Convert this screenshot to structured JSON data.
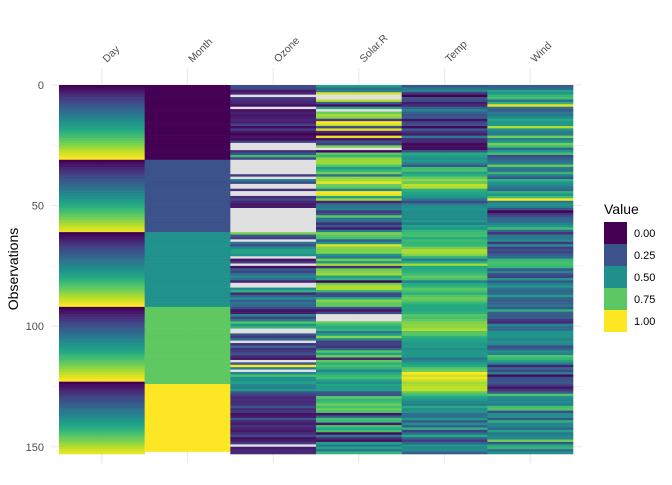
{
  "chart_data": {
    "type": "heatmap",
    "title": "",
    "xlabel": "",
    "ylabel": "Observations",
    "ylim": [
      0,
      153
    ],
    "y_ticks": [
      0,
      50,
      100,
      150
    ],
    "x_position": "top",
    "grid": true,
    "columns": [
      "Day",
      "Month",
      "Ozone",
      "Solar.R",
      "Temp",
      "Wind"
    ],
    "scaling": "each column min-max scaled to 0-1",
    "missing_color": "#e0e0e0",
    "legend": {
      "title": "Value",
      "placement": "right",
      "entries": [
        "0.00",
        "0.25",
        "0.50",
        "0.75",
        "1.00"
      ],
      "colors": [
        "#440154",
        "#3B528B",
        "#21908C",
        "#5DC863",
        "#FDE725"
      ]
    },
    "colormap": "viridis",
    "raw": {
      "Ozone": [
        41,
        36,
        12,
        18,
        null,
        28,
        23,
        19,
        8,
        null,
        7,
        16,
        11,
        14,
        18,
        14,
        34,
        6,
        30,
        11,
        1,
        11,
        4,
        32,
        null,
        null,
        null,
        23,
        45,
        115,
        37,
        null,
        null,
        null,
        null,
        null,
        null,
        29,
        null,
        71,
        39,
        null,
        null,
        23,
        null,
        null,
        21,
        37,
        20,
        12,
        13,
        null,
        null,
        null,
        null,
        null,
        null,
        null,
        null,
        null,
        null,
        135,
        49,
        32,
        null,
        64,
        40,
        77,
        97,
        97,
        85,
        null,
        10,
        27,
        null,
        7,
        48,
        35,
        61,
        79,
        63,
        16,
        null,
        null,
        80,
        108,
        20,
        52,
        82,
        50,
        64,
        59,
        39,
        9,
        16,
        78,
        35,
        66,
        122,
        89,
        110,
        null,
        null,
        44,
        28,
        65,
        null,
        22,
        59,
        23,
        31,
        44,
        21,
        9,
        null,
        45,
        168,
        73,
        null,
        76,
        118,
        84,
        85,
        96,
        78,
        73,
        91,
        47,
        32,
        20,
        23,
        21,
        24,
        44,
        21,
        28,
        9,
        13,
        46,
        18,
        13,
        24,
        16,
        13,
        23,
        36,
        7,
        14,
        30,
        null,
        14,
        18,
        20
      ],
      "Solar.R": [
        190,
        118,
        149,
        313,
        null,
        null,
        299,
        99,
        19,
        194,
        null,
        256,
        290,
        274,
        65,
        334,
        307,
        78,
        322,
        44,
        8,
        320,
        25,
        92,
        66,
        266,
        null,
        13,
        252,
        223,
        279,
        286,
        287,
        242,
        186,
        220,
        264,
        127,
        273,
        291,
        323,
        259,
        250,
        148,
        332,
        322,
        191,
        284,
        37,
        120,
        137,
        150,
        59,
        91,
        250,
        135,
        127,
        47,
        98,
        31,
        138,
        269,
        248,
        236,
        101,
        175,
        314,
        276,
        267,
        272,
        175,
        139,
        264,
        175,
        291,
        48,
        260,
        274,
        285,
        187,
        220,
        7,
        258,
        295,
        294,
        223,
        81,
        82,
        213,
        275,
        253,
        254,
        83,
        24,
        77,
        null,
        null,
        null,
        255,
        229,
        207,
        222,
        137,
        192,
        273,
        157,
        64,
        71,
        51,
        115,
        244,
        190,
        259,
        36,
        255,
        212,
        238,
        215,
        153,
        203,
        225,
        237,
        188,
        167,
        197,
        183,
        189,
        95,
        92,
        252,
        220,
        230,
        259,
        236,
        259,
        238,
        24,
        112,
        237,
        224,
        27,
        238,
        201,
        238,
        14,
        139,
        49,
        20,
        193,
        145,
        191,
        131,
        223
      ],
      "Wind": [
        7.4,
        8.0,
        12.6,
        11.5,
        14.3,
        14.9,
        8.6,
        13.8,
        20.1,
        8.6,
        6.9,
        9.7,
        9.2,
        10.9,
        13.2,
        11.5,
        12.0,
        18.4,
        11.5,
        9.7,
        9.7,
        16.6,
        9.7,
        12.0,
        16.6,
        14.9,
        8.0,
        12.0,
        14.9,
        5.7,
        7.4,
        8.6,
        9.7,
        16.1,
        9.2,
        8.6,
        14.3,
        9.7,
        6.9,
        13.8,
        11.5,
        10.9,
        9.2,
        8.0,
        13.8,
        11.5,
        14.9,
        20.7,
        9.2,
        11.5,
        10.3,
        6.3,
        1.7,
        4.6,
        6.3,
        8.0,
        8.0,
        10.3,
        11.5,
        14.9,
        8.0,
        4.1,
        9.2,
        9.2,
        10.9,
        4.6,
        10.9,
        5.1,
        6.3,
        5.7,
        7.4,
        8.6,
        14.3,
        14.9,
        14.9,
        14.3,
        6.9,
        10.3,
        6.3,
        5.1,
        11.5,
        6.9,
        9.7,
        11.5,
        8.6,
        8.0,
        8.6,
        12.0,
        7.4,
        7.4,
        7.4,
        9.2,
        6.9,
        13.8,
        7.4,
        6.9,
        7.4,
        4.6,
        4.0,
        10.3,
        8.0,
        8.6,
        11.5,
        11.5,
        11.5,
        9.7,
        11.5,
        10.3,
        6.3,
        7.4,
        10.9,
        10.3,
        15.5,
        14.3,
        12.6,
        9.7,
        3.4,
        8.0,
        5.7,
        9.7,
        2.3,
        6.3,
        6.3,
        6.9,
        5.1,
        2.8,
        4.6,
        7.4,
        15.5,
        10.9,
        10.3,
        10.9,
        9.7,
        14.9,
        15.5,
        6.3,
        10.9,
        11.5,
        6.9,
        13.8,
        10.3,
        10.3,
        8.0,
        12.6,
        9.2,
        10.3,
        10.3,
        16.6,
        6.9,
        13.2,
        14.3,
        8.0,
        11.5
      ],
      "Temp": [
        67,
        72,
        74,
        62,
        56,
        66,
        65,
        59,
        61,
        69,
        74,
        69,
        66,
        68,
        58,
        64,
        66,
        57,
        68,
        62,
        59,
        73,
        61,
        61,
        57,
        58,
        57,
        67,
        81,
        79,
        76,
        78,
        74,
        67,
        84,
        85,
        79,
        82,
        87,
        90,
        87,
        93,
        92,
        82,
        80,
        79,
        77,
        72,
        65,
        73,
        76,
        77,
        76,
        76,
        76,
        75,
        78,
        73,
        80,
        77,
        83,
        84,
        85,
        81,
        84,
        83,
        83,
        88,
        92,
        92,
        89,
        82,
        73,
        81,
        91,
        80,
        81,
        82,
        84,
        87,
        85,
        74,
        81,
        82,
        86,
        85,
        82,
        86,
        88,
        86,
        83,
        81,
        81,
        81,
        82,
        86,
        85,
        87,
        89,
        90,
        90,
        92,
        86,
        86,
        82,
        80,
        79,
        77,
        79,
        76,
        78,
        78,
        77,
        72,
        75,
        79,
        81,
        86,
        88,
        97,
        94,
        96,
        94,
        91,
        92,
        93,
        93,
        87,
        84,
        80,
        78,
        75,
        73,
        81,
        76,
        77,
        71,
        71,
        78,
        67,
        76,
        68,
        82,
        64,
        71,
        81,
        69,
        63,
        70,
        77,
        75,
        76,
        68
      ],
      "Month": [
        5,
        5,
        5,
        5,
        5,
        5,
        5,
        5,
        5,
        5,
        5,
        5,
        5,
        5,
        5,
        5,
        5,
        5,
        5,
        5,
        5,
        5,
        5,
        5,
        5,
        5,
        5,
        5,
        5,
        5,
        5,
        6,
        6,
        6,
        6,
        6,
        6,
        6,
        6,
        6,
        6,
        6,
        6,
        6,
        6,
        6,
        6,
        6,
        6,
        6,
        6,
        6,
        6,
        6,
        6,
        6,
        6,
        6,
        6,
        6,
        6,
        7,
        7,
        7,
        7,
        7,
        7,
        7,
        7,
        7,
        7,
        7,
        7,
        7,
        7,
        7,
        7,
        7,
        7,
        7,
        7,
        7,
        7,
        7,
        7,
        7,
        7,
        7,
        7,
        7,
        7,
        7,
        8,
        8,
        8,
        8,
        8,
        8,
        8,
        8,
        8,
        8,
        8,
        8,
        8,
        8,
        8,
        8,
        8,
        8,
        8,
        8,
        8,
        8,
        8,
        8,
        8,
        8,
        8,
        8,
        8,
        8,
        8,
        8,
        9,
        9,
        9,
        9,
        9,
        9,
        9,
        9,
        9,
        9,
        9,
        9,
        9,
        9,
        9,
        9,
        9,
        9,
        9,
        9,
        9,
        9,
        9,
        9,
        9,
        9,
        9,
        9
      ],
      "Day": [
        1,
        2,
        3,
        4,
        5,
        6,
        7,
        8,
        9,
        10,
        11,
        12,
        13,
        14,
        15,
        16,
        17,
        18,
        19,
        20,
        21,
        22,
        23,
        24,
        25,
        26,
        27,
        28,
        29,
        30,
        31,
        1,
        2,
        3,
        4,
        5,
        6,
        7,
        8,
        9,
        10,
        11,
        12,
        13,
        14,
        15,
        16,
        17,
        18,
        19,
        20,
        21,
        22,
        23,
        24,
        25,
        26,
        27,
        28,
        29,
        30,
        1,
        2,
        3,
        4,
        5,
        6,
        7,
        8,
        9,
        10,
        11,
        12,
        13,
        14,
        15,
        16,
        17,
        18,
        19,
        20,
        21,
        22,
        23,
        24,
        25,
        26,
        27,
        28,
        29,
        30,
        31,
        1,
        2,
        3,
        4,
        5,
        6,
        7,
        8,
        9,
        10,
        11,
        12,
        13,
        14,
        15,
        16,
        17,
        18,
        19,
        20,
        21,
        22,
        23,
        24,
        25,
        26,
        27,
        28,
        29,
        30,
        31,
        1,
        2,
        3,
        4,
        5,
        6,
        7,
        8,
        9,
        10,
        11,
        12,
        13,
        14,
        15,
        16,
        17,
        18,
        19,
        20,
        21,
        22,
        23,
        24,
        25,
        26,
        27,
        28,
        29,
        30
      ]
    }
  }
}
